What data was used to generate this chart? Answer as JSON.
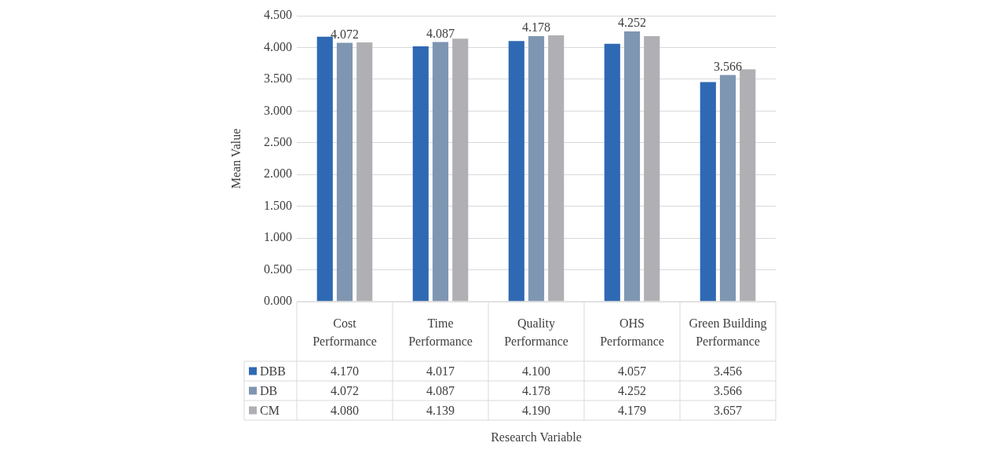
{
  "chart_data": {
    "type": "bar",
    "ylabel": "Mean Value",
    "categories": [
      "Cost Performance",
      "Time Performance",
      "Quality Performance",
      "OHS Performance",
      "Green Building Performance"
    ],
    "series": [
      {
        "name": "DBB",
        "color": "#2f69b3",
        "values": [
          4.17,
          4.017,
          4.1,
          4.057,
          3.456
        ],
        "value_labels": [
          "4.170",
          "4.017",
          "4.100",
          "4.057",
          "3.456"
        ]
      },
      {
        "name": "DB",
        "color": "#7f96b2",
        "values": [
          4.072,
          4.087,
          4.178,
          4.252,
          3.566
        ],
        "value_labels": [
          "4.072",
          "4.087",
          "4.178",
          "4.252",
          "3.566"
        ]
      },
      {
        "name": "CM",
        "color": "#b0b0b4",
        "values": [
          4.08,
          4.139,
          4.19,
          4.179,
          3.657
        ],
        "value_labels": [
          "4.080",
          "4.139",
          "4.190",
          "4.179",
          "3.657"
        ]
      }
    ],
    "annotations": [
      {
        "text": "4.072",
        "x": "Cost Performance",
        "y": 4.072
      },
      {
        "text": "4.087",
        "x": "Time Performance",
        "y": 4.087
      },
      {
        "text": "4.178",
        "x": "Quality Performance",
        "y": 4.178
      },
      {
        "text": "4.252",
        "x": "OHS Performance",
        "y": 4.252
      },
      {
        "text": "3.566",
        "x": "Green Building Performance",
        "y": 3.566
      },
      "Research Variable"
    ],
    "ylim": [
      0,
      4.5
    ],
    "yticks": [
      {
        "value": 0,
        "label": "0.000"
      },
      {
        "value": 0.5,
        "label": "0.500"
      },
      {
        "value": 1,
        "label": "1.000"
      },
      {
        "value": 1.5,
        "label": "1.500"
      },
      {
        "value": 2,
        "label": "2.000"
      },
      {
        "value": 2.5,
        "label": "2.500"
      },
      {
        "value": 3,
        "label": "3.000"
      },
      {
        "value": 3.5,
        "label": "3.500"
      },
      {
        "value": 4,
        "label": "4.000"
      },
      {
        "value": 4.5,
        "label": "4.500"
      }
    ],
    "grid": "y",
    "legend": "bottom"
  }
}
